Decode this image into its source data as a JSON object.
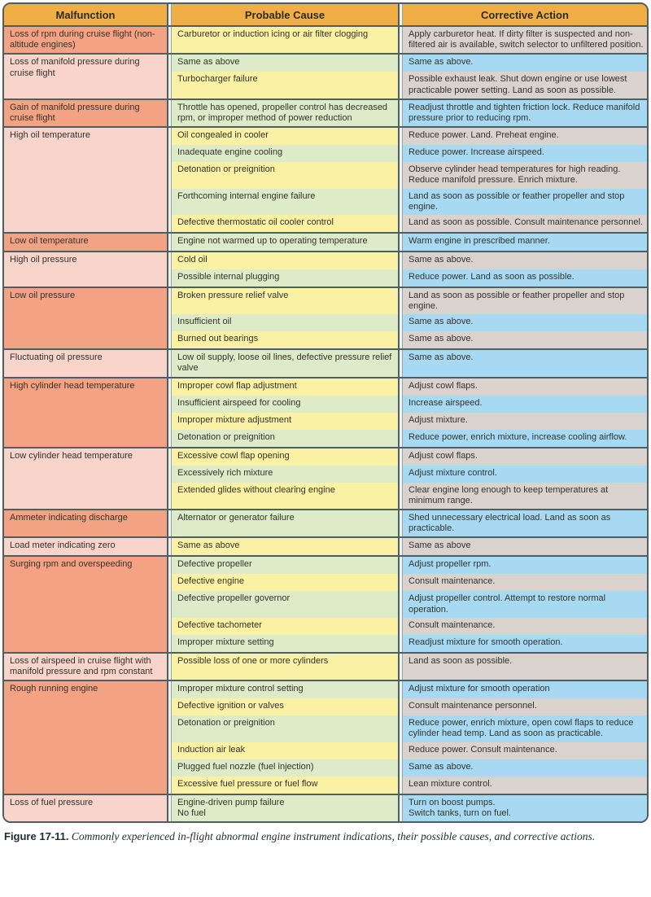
{
  "colors": {
    "header_orange": "#F0AE44",
    "malfunction_dark": "#F4A284",
    "malfunction_light": "#F9D4CB",
    "cause_yellow": "#FBF1A5",
    "cause_green": "#DEEBC8",
    "action_gray": "#DAD2CD",
    "action_blue": "#A7DAF2",
    "border_dark": "#4B5F64",
    "gap_light": "#EFF1EC"
  },
  "header": {
    "columns": [
      "Malfunction",
      "Probable Cause",
      "Corrective Action"
    ]
  },
  "table": {
    "groups": [
      {
        "malfunction": "Loss of rpm during cruise flight (non-altitude engines)",
        "rows": [
          {
            "cause": "Carburetor or induction icing or air filter clogging",
            "action": "Apply carburetor heat. If dirty filter is suspected and non-filtered air is available, switch selector to unfiltered position."
          }
        ]
      },
      {
        "malfunction": "Loss of manifold pressure during cruise flight",
        "rows": [
          {
            "cause": "Same as above",
            "action": "Same as above."
          },
          {
            "cause": "Turbocharger failure",
            "action": "Possible exhaust leak. Shut down engine or use lowest practicable power setting. Land as soon as possible."
          }
        ]
      },
      {
        "malfunction": "Gain of manifold pressure during cruise flight",
        "rows": [
          {
            "cause": "Throttle has opened, propeller control has decreased rpm, or improper method of power reduction",
            "action": "Readjust throttle and tighten friction lock. Reduce manifold pressure prior to reducing rpm."
          }
        ]
      },
      {
        "malfunction": "High oil temperature",
        "rows": [
          {
            "cause": "Oil congealed in cooler",
            "action": "Reduce power. Land. Preheat engine."
          },
          {
            "cause": "Inadequate engine cooling",
            "action": "Reduce power. Increase airspeed."
          },
          {
            "cause": "Detonation or preignition",
            "action": "Observe cylinder head temperatures for high reading. Reduce manifold pressure. Enrich mixture."
          },
          {
            "cause": "Forthcoming internal engine failure",
            "action": "Land as soon as possible or feather propeller and stop engine."
          },
          {
            "cause": "Defective thermostatic oil cooler control",
            "action": "Land as soon as possible. Consult maintenance personnel."
          }
        ]
      },
      {
        "malfunction": "Low oil temperature",
        "rows": [
          {
            "cause": "Engine not warmed up to operating temperature",
            "action": "Warm engine in prescribed manner."
          }
        ]
      },
      {
        "malfunction": "High oil pressure",
        "rows": [
          {
            "cause": "Cold oil",
            "action": "Same as above."
          },
          {
            "cause": "Possible internal plugging",
            "action": "Reduce power. Land as soon as possible."
          }
        ]
      },
      {
        "malfunction": "Low oil pressure",
        "rows": [
          {
            "cause": "Broken pressure relief valve",
            "action": "Land as soon as possible or feather propeller and stop engine."
          },
          {
            "cause": "Insufficient oil",
            "action": "Same as above."
          },
          {
            "cause": "Burned out bearings",
            "action": "Same as above."
          }
        ]
      },
      {
        "malfunction": "Fluctuating oil pressure",
        "rows": [
          {
            "cause": "Low oil supply, loose oil lines, defective pressure relief valve",
            "action": "Same as above."
          }
        ]
      },
      {
        "malfunction": "High cylinder head temperature",
        "rows": [
          {
            "cause": "Improper cowl flap adjustment",
            "action": "Adjust cowl flaps."
          },
          {
            "cause": "Insufficient airspeed for cooling",
            "action": "Increase airspeed."
          },
          {
            "cause": "Improper mixture adjustment",
            "action": "Adjust mixture."
          },
          {
            "cause": "Detonation or preignition",
            "action": "Reduce power, enrich mixture, increase cooling airflow."
          }
        ]
      },
      {
        "malfunction": "Low cylinder head temperature",
        "rows": [
          {
            "cause": "Excessive cowl flap opening",
            "action": "Adjust cowl flaps."
          },
          {
            "cause": "Excessively rich mixture",
            "action": "Adjust mixture control."
          },
          {
            "cause": "Extended glides without clearing engine",
            "action": "Clear engine long enough to keep temperatures at minimum range."
          }
        ]
      },
      {
        "malfunction": "Ammeter indicating discharge",
        "rows": [
          {
            "cause": "Alternator or generator failure",
            "action": "Shed unnecessary electrical load. Land as soon as practicable."
          }
        ]
      },
      {
        "malfunction": "Load meter indicating zero",
        "rows": [
          {
            "cause": "Same as above",
            "action": "Same as above"
          }
        ]
      },
      {
        "malfunction": "Surging rpm and overspeeding",
        "rows": [
          {
            "cause": "Defective propeller",
            "action": "Adjust propeller rpm."
          },
          {
            "cause": "Defective engine",
            "action": "Consult maintenance."
          },
          {
            "cause": "Defective propeller governor",
            "action": "Adjust propeller control. Attempt to restore normal operation."
          },
          {
            "cause": "Defective tachometer",
            "action": "Consult maintenance."
          },
          {
            "cause": "Improper mixture setting",
            "action": "Readjust mixture for smooth operation."
          }
        ]
      },
      {
        "malfunction": "Loss of airspeed in cruise flight with manifold pressure and rpm constant",
        "rows": [
          {
            "cause": "Possible loss of one or more cylinders",
            "action": "Land as soon as possible."
          }
        ]
      },
      {
        "malfunction": "Rough running engine",
        "rows": [
          {
            "cause": "Improper mixture control setting",
            "action": "Adjust mixture for smooth operation"
          },
          {
            "cause": "Defective ignition or valves",
            "action": "Consult maintenance personnel."
          },
          {
            "cause": "Detonation or preignition",
            "action": "Reduce power, enrich mixture, open cowl flaps to reduce cylinder head temp. Land as soon as practicable."
          },
          {
            "cause": "Induction air leak",
            "action": "Reduce power. Consult maintenance."
          },
          {
            "cause": "Plugged fuel nozzle (fuel injection)",
            "action": "Same as above."
          },
          {
            "cause": "Excessive fuel pressure or fuel flow",
            "action": "Lean mixture control."
          }
        ]
      },
      {
        "malfunction": "Loss of fuel pressure",
        "rows": [
          {
            "cause": "Engine-driven pump failure\nNo fuel",
            "action": "Turn on boost pumps.\nSwitch tanks, turn on fuel."
          }
        ]
      }
    ]
  },
  "caption": {
    "label": "Figure 17-11.",
    "text": " Commonly experienced in-flight abnormal engine instrument indications, their possible causes, and corrective actions."
  }
}
